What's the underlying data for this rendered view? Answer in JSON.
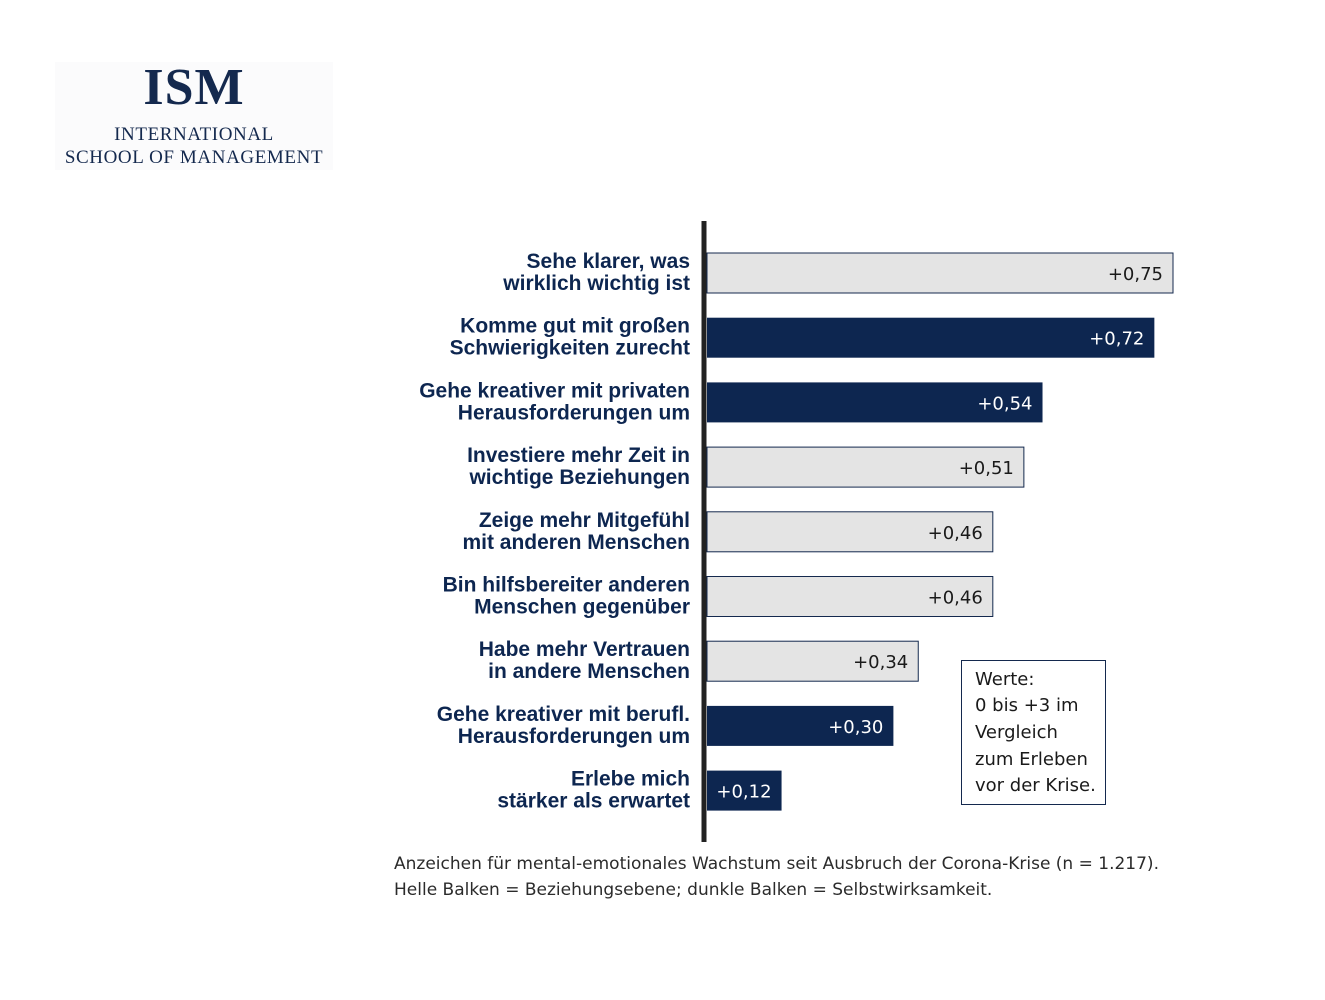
{
  "logo": {
    "mark": "ISM",
    "line1": "INTERNATIONAL",
    "line2": "SCHOOL OF MANAGEMENT"
  },
  "colors": {
    "dark": "#0d2650",
    "light": "#e4e4e4",
    "border": "#14294e",
    "axis": "#222222"
  },
  "chart_data": {
    "type": "bar",
    "orientation": "horizontal",
    "xlim": [
      0,
      0.75
    ],
    "grid": false,
    "bars": [
      {
        "label": [
          "Sehe klarer, was",
          "wirklich wichtig ist"
        ],
        "value": 0.75,
        "value_label": "+0,75",
        "group": "Beziehungsebene"
      },
      {
        "label": [
          "Komme gut mit großen",
          "Schwierigkeiten zurecht"
        ],
        "value": 0.72,
        "value_label": "+0,72",
        "group": "Selbstwirksamkeit"
      },
      {
        "label": [
          "Gehe kreativer mit privaten",
          "Herausforderungen um"
        ],
        "value": 0.54,
        "value_label": "+0,54",
        "group": "Selbstwirksamkeit"
      },
      {
        "label": [
          "Investiere mehr Zeit in",
          "wichtige Beziehungen"
        ],
        "value": 0.51,
        "value_label": "+0,51",
        "group": "Beziehungsebene"
      },
      {
        "label": [
          "Zeige mehr Mitgefühl",
          "mit anderen Menschen"
        ],
        "value": 0.46,
        "value_label": "+0,46",
        "group": "Beziehungsebene"
      },
      {
        "label": [
          "Bin hilfsbereiter anderen",
          "Menschen gegenüber"
        ],
        "value": 0.46,
        "value_label": "+0,46",
        "group": "Beziehungsebene"
      },
      {
        "label": [
          "Habe mehr Vertrauen",
          "in andere Menschen"
        ],
        "value": 0.34,
        "value_label": "+0,34",
        "group": "Beziehungsebene"
      },
      {
        "label": [
          "Gehe kreativer mit berufl.",
          "Herausforderungen um"
        ],
        "value": 0.3,
        "value_label": "+0,30",
        "group": "Selbstwirksamkeit"
      },
      {
        "label": [
          "Erlebe mich",
          "stärker als erwartet"
        ],
        "value": 0.12,
        "value_label": "+0,12",
        "group": "Selbstwirksamkeit"
      }
    ]
  },
  "legend_box": {
    "lines": [
      "Werte:",
      "0 bis +3 im",
      "Vergleich",
      "zum Erleben",
      "vor der Krise."
    ]
  },
  "caption": {
    "line1": "Anzeichen für mental-emotionales Wachstum seit Ausbruch der Corona-Krise (n = 1.217).",
    "line2": "Helle Balken = Beziehungsebene; dunkle Balken = Selbstwirksamkeit."
  }
}
